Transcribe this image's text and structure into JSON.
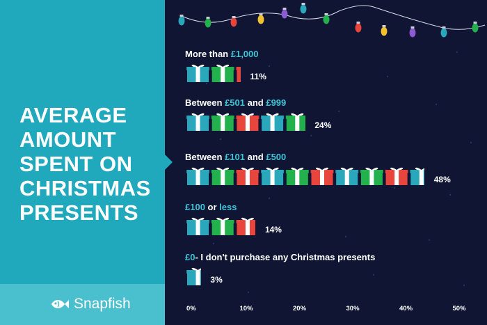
{
  "title_lines": [
    "AVERAGE",
    "AMOUNT",
    "SPENT ON",
    "CHRISTMAS",
    "PRESENTS"
  ],
  "brand": "Snapfish",
  "colors": {
    "background": "#0f1533",
    "panel": "#20a9bd",
    "panel_bottom": "#4ac0ce",
    "highlight": "#3fc4d6",
    "gift_blue": "#2aa7bb",
    "gift_green": "#23b14d",
    "gift_red": "#e8453c"
  },
  "rows": [
    {
      "label_parts": [
        {
          "t": "More than ",
          "hl": false
        },
        {
          "t": "£1,000",
          "hl": true
        }
      ],
      "value": 11,
      "value_label": "11%"
    },
    {
      "label_parts": [
        {
          "t": "Between ",
          "hl": false
        },
        {
          "t": "£501",
          "hl": true
        },
        {
          "t": " and ",
          "hl": false
        },
        {
          "t": "£999",
          "hl": true
        }
      ],
      "value": 24,
      "value_label": "24%"
    },
    {
      "label_parts": [
        {
          "t": "Between ",
          "hl": false
        },
        {
          "t": "£101",
          "hl": true
        },
        {
          "t": " and ",
          "hl": false
        },
        {
          "t": "£500",
          "hl": true
        }
      ],
      "value": 48,
      "value_label": "48%"
    },
    {
      "label_parts": [
        {
          "t": "£100",
          "hl": true
        },
        {
          "t": " or ",
          "hl": false
        },
        {
          "t": "less",
          "hl": true
        }
      ],
      "value": 14,
      "value_label": "14%"
    },
    {
      "label_parts": [
        {
          "t": "£0",
          "hl": true
        },
        {
          "t": "- I don't purchase any Christmas presents",
          "hl": false
        }
      ],
      "value": 3,
      "value_label": "3%"
    }
  ],
  "chart_data": {
    "type": "bar",
    "title": "AVERAGE AMOUNT SPENT ON CHRISTMAS PRESENTS",
    "categories": [
      "More than £1,000",
      "Between £501 and £999",
      "Between £101 and £500",
      "£100 or less",
      "£0- I don't purchase any Christmas presents"
    ],
    "values": [
      11,
      24,
      48,
      14,
      3
    ],
    "orientation": "horizontal",
    "xlim": [
      0,
      50
    ],
    "x_ticks": [
      "0%",
      "10%",
      "20%",
      "30%",
      "40%",
      "50%"
    ],
    "xlabel": "",
    "ylabel": ""
  }
}
